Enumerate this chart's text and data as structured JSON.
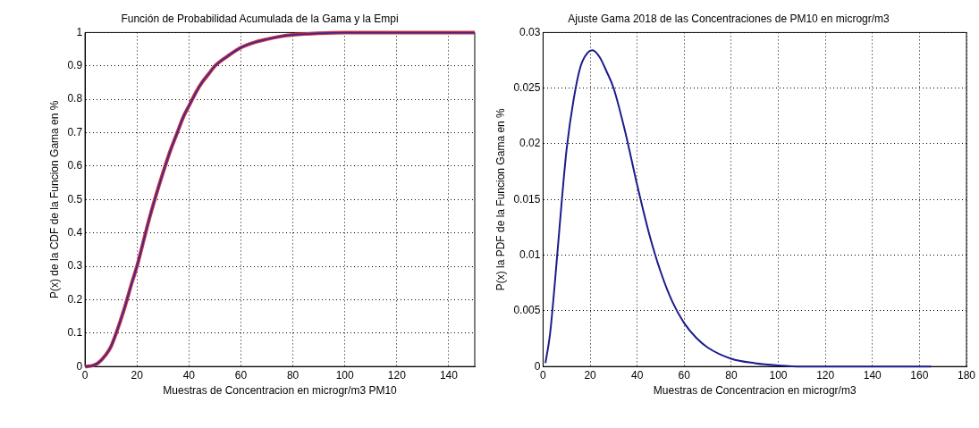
{
  "chart_data": [
    {
      "type": "line",
      "title": "Función de Probabilidad Acumulada de la Gama y la Empi",
      "xlabel": "Muestras de Concentracion en microgr/m3 PM10",
      "ylabel": "P(x) de la CDF de la Funcion Gama en %",
      "xlim": [
        0,
        150
      ],
      "xticks": [
        0,
        20,
        40,
        60,
        80,
        100,
        120,
        140
      ],
      "ylim": [
        0,
        1
      ],
      "yticks": [
        0,
        0.1,
        0.2,
        0.3,
        0.4,
        0.5,
        0.6,
        0.7,
        0.8,
        0.9,
        1
      ],
      "grid": true,
      "legend": false,
      "marker": "none",
      "series": [
        {
          "color": "#d0303c",
          "x": [
            0,
            3,
            5,
            8,
            10,
            12,
            15,
            18,
            20,
            22,
            25,
            28,
            30,
            33,
            35,
            38,
            40,
            43,
            45,
            48,
            50,
            55,
            60,
            65,
            70,
            75,
            80,
            90,
            100,
            120,
            150
          ],
          "values": [
            0,
            0.003,
            0.01,
            0.035,
            0.06,
            0.1,
            0.17,
            0.25,
            0.3,
            0.36,
            0.45,
            0.53,
            0.58,
            0.65,
            0.69,
            0.75,
            0.78,
            0.825,
            0.85,
            0.88,
            0.9,
            0.93,
            0.955,
            0.97,
            0.98,
            0.988,
            0.993,
            0.998,
            1,
            1,
            1
          ]
        },
        {
          "color": "#2a2a9c",
          "x": [
            0,
            3,
            5,
            8,
            10,
            12,
            15,
            18,
            20,
            22,
            25,
            28,
            30,
            33,
            35,
            38,
            40,
            43,
            45,
            48,
            50,
            55,
            60,
            65,
            70,
            75,
            80,
            90,
            100,
            120,
            150
          ],
          "values": [
            0,
            0.003,
            0.01,
            0.035,
            0.06,
            0.1,
            0.17,
            0.25,
            0.3,
            0.36,
            0.45,
            0.53,
            0.58,
            0.65,
            0.69,
            0.75,
            0.78,
            0.825,
            0.85,
            0.88,
            0.9,
            0.93,
            0.955,
            0.97,
            0.98,
            0.988,
            0.993,
            0.998,
            1,
            1,
            1
          ]
        }
      ]
    },
    {
      "type": "line",
      "title": "Ajuste Gama 2018 de las Concentraciones de PM10 en microgr/m3",
      "xlabel": "Muestras de Concentracion en microgr/m3",
      "ylabel": "P(x) la PDF de la Funcion Gama en %",
      "xlim": [
        0,
        180
      ],
      "xticks": [
        0,
        20,
        40,
        60,
        80,
        100,
        120,
        140,
        160,
        180
      ],
      "ylim": [
        0,
        0.03
      ],
      "yticks": [
        0,
        0.005,
        0.01,
        0.015,
        0.02,
        0.025,
        0.03
      ],
      "grid": true,
      "legend": false,
      "marker": "none",
      "series": [
        {
          "color": "#1c1c8c",
          "x": [
            1,
            3,
            5,
            8,
            10,
            13,
            16,
            19,
            21,
            24,
            27,
            30,
            35,
            40,
            45,
            50,
            55,
            60,
            65,
            70,
            80,
            90,
            100,
            110,
            120,
            140,
            165
          ],
          "values": [
            0.0003,
            0.003,
            0.0075,
            0.015,
            0.0195,
            0.024,
            0.027,
            0.0282,
            0.0284,
            0.0278,
            0.0265,
            0.025,
            0.021,
            0.0163,
            0.012,
            0.0085,
            0.0058,
            0.0039,
            0.0026,
            0.0017,
            0.0007,
            0.0003,
            0.0001,
            0,
            0,
            0,
            0
          ]
        }
      ]
    }
  ]
}
